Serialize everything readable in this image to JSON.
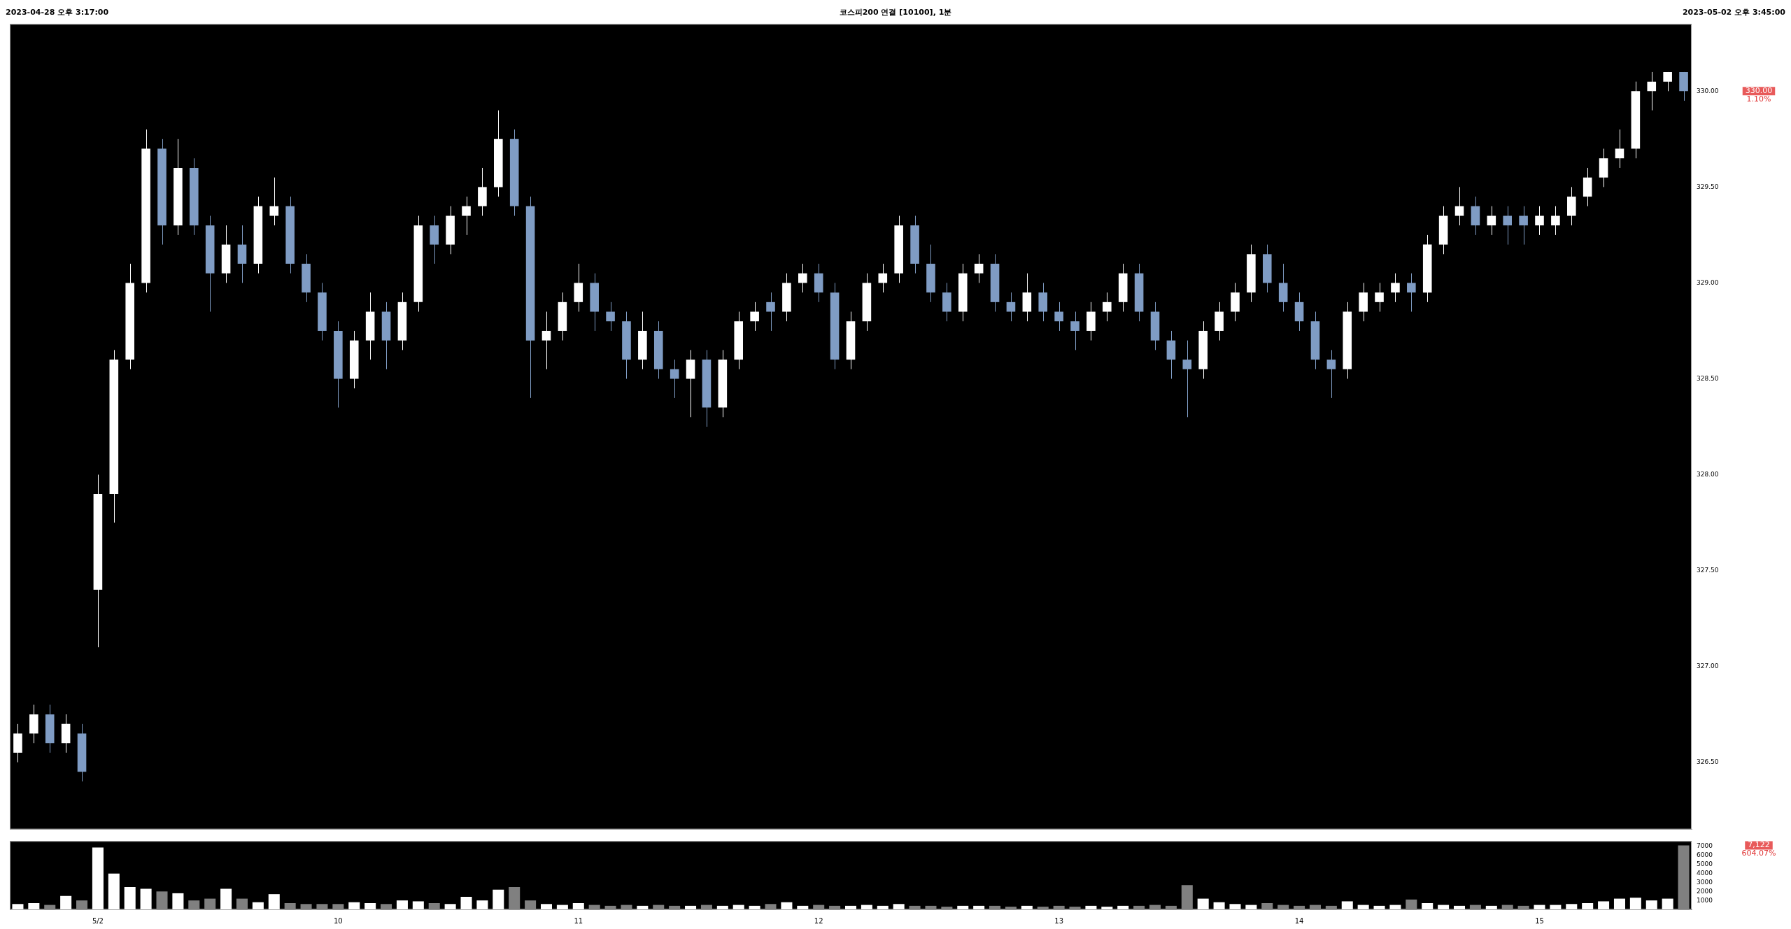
{
  "chart_data": [
    {
      "type": "candlestick",
      "title": "코스피200 연결 [10100], 1분",
      "annotations": [
        "2023-04-28 오후 3:17:00",
        "2023-05-02 오후 3:45:00",
        "330.00",
        "1.10%"
      ],
      "categories": [
        null,
        null,
        null,
        null,
        null,
        null,
        null,
        null,
        null,
        null,
        null,
        null,
        null,
        null,
        null,
        null,
        null,
        null,
        null,
        null,
        null,
        null,
        null,
        null,
        null,
        null,
        null,
        null,
        null,
        null,
        null,
        null,
        null,
        null,
        null,
        null,
        null,
        null,
        null,
        null,
        null,
        null,
        null,
        null,
        null,
        null,
        null,
        null,
        null,
        null,
        null,
        null,
        null,
        null,
        null,
        null,
        null,
        null,
        null,
        null,
        null,
        null,
        null,
        null,
        null,
        null,
        null,
        null,
        null,
        null,
        null,
        null,
        null,
        null,
        null,
        null,
        null,
        null,
        null,
        null,
        null,
        null,
        null,
        null,
        null,
        null,
        null,
        null,
        null,
        null,
        null,
        null,
        null,
        null,
        null,
        null,
        null,
        null,
        null,
        null,
        null,
        null,
        null,
        null,
        null
      ],
      "ohlc": [
        [
          326.55,
          326.7,
          326.5,
          326.65
        ],
        [
          326.65,
          326.8,
          326.6,
          326.75
        ],
        [
          326.75,
          326.8,
          326.55,
          326.6
        ],
        [
          326.6,
          326.75,
          326.55,
          326.7
        ],
        [
          326.65,
          326.7,
          326.4,
          326.45
        ],
        [
          327.4,
          328.0,
          327.1,
          327.9
        ],
        [
          327.9,
          328.65,
          327.75,
          328.6
        ],
        [
          328.6,
          329.1,
          328.55,
          329.0
        ],
        [
          329.0,
          329.8,
          328.95,
          329.7
        ],
        [
          329.7,
          329.75,
          329.2,
          329.3
        ],
        [
          329.3,
          329.75,
          329.25,
          329.6
        ],
        [
          329.6,
          329.65,
          329.25,
          329.3
        ],
        [
          329.3,
          329.35,
          328.85,
          329.05
        ],
        [
          329.05,
          329.3,
          329.0,
          329.2
        ],
        [
          329.2,
          329.3,
          329.0,
          329.1
        ],
        [
          329.1,
          329.45,
          329.05,
          329.4
        ],
        [
          329.35,
          329.55,
          329.3,
          329.4
        ],
        [
          329.4,
          329.45,
          329.05,
          329.1
        ],
        [
          329.1,
          329.15,
          328.9,
          328.95
        ],
        [
          328.95,
          329.0,
          328.7,
          328.75
        ],
        [
          328.75,
          328.8,
          328.35,
          328.5
        ],
        [
          328.5,
          328.75,
          328.45,
          328.7
        ],
        [
          328.7,
          328.95,
          328.6,
          328.85
        ],
        [
          328.85,
          328.9,
          328.55,
          328.7
        ],
        [
          328.7,
          328.95,
          328.65,
          328.9
        ],
        [
          328.9,
          329.35,
          328.85,
          329.3
        ],
        [
          329.3,
          329.35,
          329.1,
          329.2
        ],
        [
          329.2,
          329.4,
          329.15,
          329.35
        ],
        [
          329.35,
          329.45,
          329.25,
          329.4
        ],
        [
          329.4,
          329.6,
          329.35,
          329.5
        ],
        [
          329.5,
          329.9,
          329.45,
          329.75
        ],
        [
          329.75,
          329.8,
          329.35,
          329.4
        ],
        [
          329.4,
          329.45,
          328.4,
          328.7
        ],
        [
          328.7,
          328.85,
          328.55,
          328.75
        ],
        [
          328.75,
          328.95,
          328.7,
          328.9
        ],
        [
          328.9,
          329.1,
          328.85,
          329.0
        ],
        [
          329.0,
          329.05,
          328.75,
          328.85
        ],
        [
          328.85,
          328.9,
          328.75,
          328.8
        ],
        [
          328.8,
          328.85,
          328.5,
          328.6
        ],
        [
          328.6,
          328.85,
          328.55,
          328.75
        ],
        [
          328.75,
          328.8,
          328.5,
          328.55
        ],
        [
          328.55,
          328.6,
          328.4,
          328.5
        ],
        [
          328.5,
          328.65,
          328.3,
          328.6
        ],
        [
          328.6,
          328.65,
          328.25,
          328.35
        ],
        [
          328.35,
          328.65,
          328.3,
          328.6
        ],
        [
          328.6,
          328.85,
          328.55,
          328.8
        ],
        [
          328.8,
          328.9,
          328.75,
          328.85
        ],
        [
          328.9,
          328.95,
          328.75,
          328.85
        ],
        [
          328.85,
          329.05,
          328.8,
          329.0
        ],
        [
          329.0,
          329.1,
          328.95,
          329.05
        ],
        [
          329.05,
          329.1,
          328.9,
          328.95
        ],
        [
          328.95,
          329.0,
          328.55,
          328.6
        ],
        [
          328.6,
          328.85,
          328.55,
          328.8
        ],
        [
          328.8,
          329.05,
          328.75,
          329.0
        ],
        [
          329.0,
          329.1,
          328.95,
          329.05
        ],
        [
          329.05,
          329.35,
          329.0,
          329.3
        ],
        [
          329.3,
          329.35,
          329.05,
          329.1
        ],
        [
          329.1,
          329.2,
          328.9,
          328.95
        ],
        [
          328.95,
          329.0,
          328.8,
          328.85
        ],
        [
          328.85,
          329.1,
          328.8,
          329.05
        ],
        [
          329.05,
          329.15,
          329.0,
          329.1
        ],
        [
          329.1,
          329.15,
          328.85,
          328.9
        ],
        [
          328.9,
          328.95,
          328.8,
          328.85
        ],
        [
          328.85,
          329.05,
          328.8,
          328.95
        ],
        [
          328.95,
          329.0,
          328.8,
          328.85
        ],
        [
          328.85,
          328.9,
          328.75,
          328.8
        ],
        [
          328.8,
          328.85,
          328.65,
          328.75
        ],
        [
          328.75,
          328.9,
          328.7,
          328.85
        ],
        [
          328.85,
          328.95,
          328.8,
          328.9
        ],
        [
          328.9,
          329.1,
          328.85,
          329.05
        ],
        [
          329.05,
          329.1,
          328.8,
          328.85
        ],
        [
          328.85,
          328.9,
          328.65,
          328.7
        ],
        [
          328.7,
          328.75,
          328.5,
          328.6
        ],
        [
          328.6,
          328.7,
          328.3,
          328.55
        ],
        [
          328.55,
          328.8,
          328.5,
          328.75
        ],
        [
          328.75,
          328.9,
          328.7,
          328.85
        ],
        [
          328.85,
          329.0,
          328.8,
          328.95
        ],
        [
          328.95,
          329.2,
          328.9,
          329.15
        ],
        [
          329.15,
          329.2,
          328.95,
          329.0
        ],
        [
          329.0,
          329.1,
          328.85,
          328.9
        ],
        [
          328.9,
          328.95,
          328.75,
          328.8
        ],
        [
          328.8,
          328.85,
          328.55,
          328.6
        ],
        [
          328.6,
          328.65,
          328.4,
          328.55
        ],
        [
          328.55,
          328.9,
          328.5,
          328.85
        ],
        [
          328.85,
          329.0,
          328.8,
          328.95
        ],
        [
          328.9,
          329.0,
          328.85,
          328.95
        ],
        [
          328.95,
          329.05,
          328.9,
          329.0
        ],
        [
          329.0,
          329.05,
          328.85,
          328.95
        ],
        [
          328.95,
          329.25,
          328.9,
          329.2
        ],
        [
          329.2,
          329.4,
          329.15,
          329.35
        ],
        [
          329.35,
          329.5,
          329.3,
          329.4
        ],
        [
          329.4,
          329.45,
          329.25,
          329.3
        ],
        [
          329.3,
          329.4,
          329.25,
          329.35
        ],
        [
          329.35,
          329.4,
          329.2,
          329.3
        ],
        [
          329.35,
          329.4,
          329.2,
          329.3
        ],
        [
          329.3,
          329.4,
          329.25,
          329.35
        ],
        [
          329.3,
          329.4,
          329.25,
          329.35
        ],
        [
          329.35,
          329.5,
          329.3,
          329.45
        ],
        [
          329.45,
          329.6,
          329.4,
          329.55
        ],
        [
          329.55,
          329.7,
          329.5,
          329.65
        ],
        [
          329.65,
          329.8,
          329.6,
          329.7
        ],
        [
          329.7,
          330.05,
          329.65,
          330.0
        ],
        [
          330.0,
          330.1,
          329.9,
          330.05
        ],
        [
          330.05,
          330.1,
          330.0,
          330.1
        ],
        [
          330.1,
          330.1,
          329.95,
          330.0
        ]
      ],
      "colors": [
        "#ffffff",
        "#ffffff",
        "#7f9cc4",
        "#ffffff",
        "#7f9cc4",
        "#ffffff",
        "#ffffff",
        "#ffffff",
        "#ffffff",
        "#7f9cc4",
        "#ffffff",
        "#7f9cc4",
        "#7f9cc4",
        "#ffffff",
        "#7f9cc4",
        "#ffffff",
        "#ffffff",
        "#7f9cc4",
        "#7f9cc4",
        "#7f9cc4",
        "#7f9cc4",
        "#ffffff",
        "#ffffff",
        "#7f9cc4",
        "#ffffff",
        "#ffffff",
        "#7f9cc4",
        "#ffffff",
        "#ffffff",
        "#ffffff",
        "#ffffff",
        "#7f9cc4",
        "#7f9cc4",
        "#ffffff",
        "#ffffff",
        "#ffffff",
        "#7f9cc4",
        "#7f9cc4",
        "#7f9cc4",
        "#ffffff",
        "#7f9cc4",
        "#7f9cc4",
        "#ffffff",
        "#7f9cc4",
        "#ffffff",
        "#ffffff",
        "#ffffff",
        "#7f9cc4",
        "#ffffff",
        "#ffffff",
        "#7f9cc4",
        "#7f9cc4",
        "#ffffff",
        "#ffffff",
        "#ffffff",
        "#ffffff",
        "#7f9cc4",
        "#7f9cc4",
        "#7f9cc4",
        "#ffffff",
        "#ffffff",
        "#7f9cc4",
        "#7f9cc4",
        "#ffffff",
        "#7f9cc4",
        "#7f9cc4",
        "#7f9cc4",
        "#ffffff",
        "#ffffff",
        "#ffffff",
        "#7f9cc4",
        "#7f9cc4",
        "#7f9cc4",
        "#7f9cc4",
        "#ffffff",
        "#ffffff",
        "#ffffff",
        "#ffffff",
        "#7f9cc4",
        "#7f9cc4",
        "#7f9cc4",
        "#7f9cc4",
        "#7f9cc4",
        "#ffffff",
        "#ffffff",
        "#ffffff",
        "#ffffff",
        "#7f9cc4",
        "#ffffff",
        "#ffffff",
        "#ffffff",
        "#7f9cc4",
        "#ffffff",
        "#7f9cc4",
        "#7f9cc4",
        "#ffffff",
        "#ffffff",
        "#ffffff",
        "#ffffff",
        "#ffffff",
        "#ffffff",
        "#ffffff",
        "#ffffff",
        "#ffffff",
        "#7f9cc4"
      ],
      "ylim": [
        326.15,
        330.35
      ],
      "yticks": [
        {
          "value": 326.5,
          "label": "326.50"
        },
        {
          "value": 327,
          "label": "327.00"
        },
        {
          "value": 327.5,
          "label": "327.50"
        },
        {
          "value": 328,
          "label": "328.00"
        },
        {
          "value": 328.5,
          "label": "328.50"
        },
        {
          "value": 329,
          "label": "329.00"
        },
        {
          "value": 329.5,
          "label": "329.50"
        },
        {
          "value": 330,
          "label": "330.00"
        }
      ],
      "tick_labels": "y"
    },
    {
      "type": "bar",
      "annotations": [
        "7,122",
        "604.07%"
      ],
      "categories": [
        null,
        null,
        null,
        null,
        null,
        "5/2",
        null,
        null,
        null,
        null,
        null,
        null,
        null,
        null,
        null,
        null,
        null,
        null,
        null,
        null,
        "10",
        null,
        null,
        null,
        null,
        null,
        null,
        null,
        null,
        null,
        null,
        null,
        null,
        null,
        null,
        "11",
        null,
        null,
        null,
        null,
        null,
        null,
        null,
        null,
        null,
        null,
        null,
        null,
        null,
        null,
        "12",
        null,
        null,
        null,
        null,
        null,
        null,
        null,
        null,
        null,
        null,
        null,
        null,
        null,
        null,
        "13",
        null,
        null,
        null,
        null,
        null,
        null,
        null,
        null,
        null,
        null,
        null,
        null,
        null,
        null,
        "14",
        null,
        null,
        null,
        null,
        null,
        null,
        null,
        null,
        null,
        null,
        null,
        null,
        null,
        null,
        "15",
        null,
        null,
        null,
        null,
        null,
        null,
        null,
        null,
        null
      ],
      "values": [
        600,
        700,
        500,
        1500,
        1000,
        6900,
        4000,
        2500,
        2300,
        2000,
        1800,
        1000,
        1200,
        2300,
        1200,
        800,
        1700,
        700,
        600,
        600,
        600,
        800,
        700,
        600,
        1000,
        900,
        700,
        600,
        1400,
        1000,
        2200,
        2500,
        1000,
        600,
        500,
        700,
        500,
        400,
        500,
        400,
        500,
        400,
        400,
        500,
        400,
        500,
        400,
        600,
        800,
        400,
        500,
        400,
        400,
        500,
        400,
        600,
        400,
        400,
        300,
        400,
        400,
        400,
        300,
        400,
        300,
        400,
        300,
        400,
        300,
        400,
        400,
        500,
        400,
        2700,
        1200,
        800,
        600,
        500,
        700,
        500,
        400,
        500,
        400,
        900,
        500,
        400,
        500,
        1100,
        700,
        500,
        400,
        500,
        400,
        500,
        400,
        500,
        500,
        600,
        700,
        900,
        1200,
        1300,
        1000,
        1200,
        7122
      ],
      "colors": [
        "#ffffff",
        "#ffffff",
        "#808080",
        "#ffffff",
        "#808080",
        "#ffffff",
        "#ffffff",
        "#ffffff",
        "#ffffff",
        "#808080",
        "#ffffff",
        "#808080",
        "#808080",
        "#ffffff",
        "#808080",
        "#ffffff",
        "#ffffff",
        "#808080",
        "#808080",
        "#808080",
        "#808080",
        "#ffffff",
        "#ffffff",
        "#808080",
        "#ffffff",
        "#ffffff",
        "#808080",
        "#ffffff",
        "#ffffff",
        "#ffffff",
        "#ffffff",
        "#808080",
        "#808080",
        "#ffffff",
        "#ffffff",
        "#ffffff",
        "#808080",
        "#808080",
        "#808080",
        "#ffffff",
        "#808080",
        "#808080",
        "#ffffff",
        "#808080",
        "#ffffff",
        "#ffffff",
        "#ffffff",
        "#808080",
        "#ffffff",
        "#ffffff",
        "#808080",
        "#808080",
        "#ffffff",
        "#ffffff",
        "#ffffff",
        "#ffffff",
        "#808080",
        "#808080",
        "#808080",
        "#ffffff",
        "#ffffff",
        "#808080",
        "#808080",
        "#ffffff",
        "#808080",
        "#808080",
        "#808080",
        "#ffffff",
        "#ffffff",
        "#ffffff",
        "#808080",
        "#808080",
        "#808080",
        "#808080",
        "#ffffff",
        "#ffffff",
        "#ffffff",
        "#ffffff",
        "#808080",
        "#808080",
        "#808080",
        "#808080",
        "#808080",
        "#ffffff",
        "#ffffff",
        "#ffffff",
        "#ffffff",
        "#808080",
        "#ffffff",
        "#ffffff",
        "#ffffff",
        "#808080",
        "#ffffff",
        "#808080",
        "#808080",
        "#ffffff",
        "#ffffff",
        "#ffffff",
        "#ffffff",
        "#ffffff",
        "#ffffff",
        "#ffffff",
        "#ffffff",
        "#ffffff",
        "#808080"
      ],
      "ylim": [
        0,
        7600
      ],
      "yticks": [
        1000,
        2000,
        3000,
        4000,
        5000,
        6000,
        7000
      ]
    }
  ]
}
